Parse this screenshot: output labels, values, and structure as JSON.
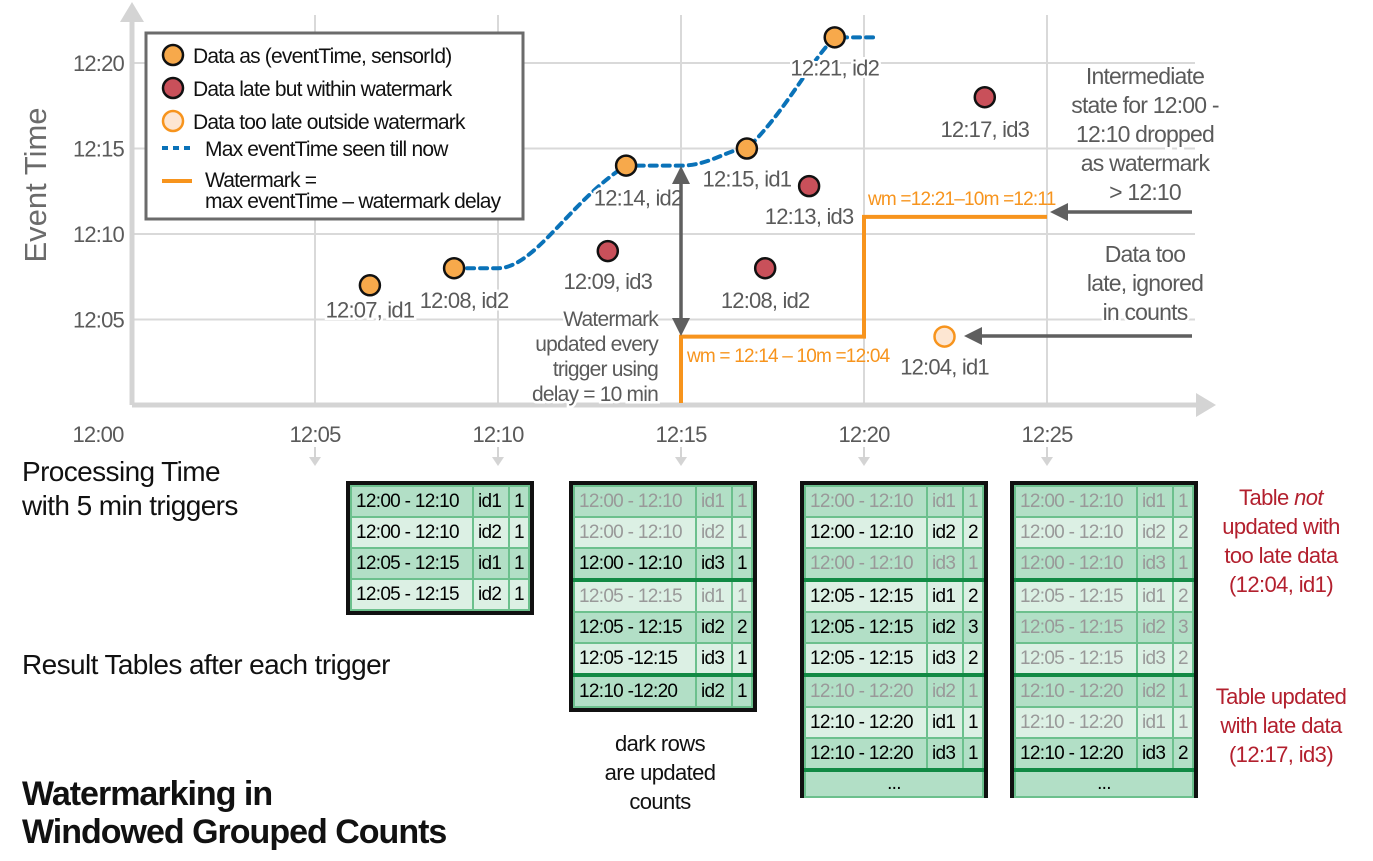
{
  "chart": {
    "y_axis_label": "Event Time",
    "y_ticks": [
      "12:05",
      "12:10",
      "12:15",
      "12:20"
    ],
    "x_ticks": [
      "12:00",
      "12:05",
      "12:10",
      "12:15",
      "12:20",
      "12:25"
    ],
    "legend": [
      {
        "marker": "orange-circle",
        "label": "Data as (eventTime, sensorId)"
      },
      {
        "marker": "red-circle",
        "label": "Data late but within watermark"
      },
      {
        "marker": "pale-circle",
        "label": "Data too late outside watermark"
      },
      {
        "marker": "blue-dashed-line",
        "label": "Max eventTime seen till now"
      },
      {
        "marker": "orange-line",
        "label_line1": "Watermark =",
        "label_line2": "max eventTime – watermark delay"
      }
    ],
    "points": [
      {
        "kind": "on-time",
        "label": "12:07, id1",
        "proc_min": 6.5,
        "event_min": 7
      },
      {
        "kind": "on-time",
        "label": "12:08, id2",
        "proc_min": 8.8,
        "event_min": 8
      },
      {
        "kind": "late",
        "label": "12:09, id3",
        "proc_min": 13,
        "event_min": 9
      },
      {
        "kind": "on-time",
        "label": "12:14, id2",
        "proc_min": 13.5,
        "event_min": 14
      },
      {
        "kind": "on-time",
        "label": "12:15, id1",
        "proc_min": 16.8,
        "event_min": 15
      },
      {
        "kind": "late",
        "label": "12:08, id2",
        "proc_min": 17.3,
        "event_min": 8
      },
      {
        "kind": "late",
        "label": "12:13, id3",
        "proc_min": 18.5,
        "event_min": 12.8
      },
      {
        "kind": "on-time",
        "label": "12:21, id2",
        "proc_min": 19.2,
        "event_min": 21.5
      },
      {
        "kind": "too-late",
        "label": "12:04, id1",
        "proc_min": 22.2,
        "event_min": 4
      },
      {
        "kind": "late",
        "label": "12:17, id3",
        "proc_min": 23.3,
        "event_min": 18
      }
    ],
    "watermark_labels": {
      "first": "wm = 12:14 – 10m =12:04",
      "second": "wm =12:21–10m =12:11"
    },
    "annotations": {
      "watermark_update": [
        "Watermark",
        "updated every",
        "trigger using",
        "delay = 10 min"
      ],
      "intermediate_state": [
        "Intermediate",
        "state for 12:00 -",
        "12:10 dropped",
        "as watermark",
        "> 12:10"
      ],
      "too_late": [
        "Data too",
        "late, ignored",
        "in counts"
      ]
    },
    "colors": {
      "on_time": "#f7a94b",
      "late": "#c9505a",
      "too_late_fill": "#fde6d2",
      "too_late_stroke": "#f7941d",
      "max_event_line": "#0a72b8",
      "watermark": "#f7941d",
      "grid": "#d9d9d9",
      "arrow": "#5f5f5f"
    }
  },
  "labels": {
    "processing_time_line1": "Processing Time",
    "processing_time_line2": "with 5 min triggers",
    "result_tables": "Result Tables after each trigger",
    "title_line1": "Watermarking in",
    "title_line2": "Windowed Grouped Counts",
    "dark_rows_line1": "dark rows",
    "dark_rows_line2": "are updated",
    "dark_rows_line3": "counts",
    "note_not_updated_pre": "Table ",
    "note_not_updated_em": "not",
    "note_not_updated_line2": "updated with",
    "note_not_updated_line3": "too late data",
    "note_not_updated_line4": "(12:04, id1)",
    "note_updated_line1": "Table updated",
    "note_updated_line2": "with late data",
    "note_updated_line3": "(12:17, id3)",
    "ellipsis": "..."
  },
  "tables": [
    {
      "trigger": "12:10",
      "rows": [
        {
          "window": "12:00 - 12:10",
          "sensor": "id1",
          "count": "1",
          "updated": true
        },
        {
          "window": "12:00 - 12:10",
          "sensor": "id2",
          "count": "1",
          "updated": true
        },
        {
          "window": "12:05 - 12:15",
          "sensor": "id1",
          "count": "1",
          "updated": true
        },
        {
          "window": "12:05 - 12:15",
          "sensor": "id2",
          "count": "1",
          "updated": true
        }
      ]
    },
    {
      "trigger": "12:15",
      "rows": [
        {
          "window": "12:00 - 12:10",
          "sensor": "id1",
          "count": "1",
          "updated": false
        },
        {
          "window": "12:00 - 12:10",
          "sensor": "id2",
          "count": "1",
          "updated": false
        },
        {
          "window": "12:00 - 12:10",
          "sensor": "id3",
          "count": "1",
          "updated": true
        },
        {
          "window": "12:05 - 12:15",
          "sensor": "id1",
          "count": "1",
          "updated": false
        },
        {
          "window": "12:05 - 12:15",
          "sensor": "id2",
          "count": "2",
          "updated": true
        },
        {
          "window": "12:05 -12:15",
          "sensor": "id3",
          "count": "1",
          "updated": true
        },
        {
          "window": "12:10 -12:20",
          "sensor": "id2",
          "count": "1",
          "updated": true
        }
      ]
    },
    {
      "trigger": "12:20",
      "rows": [
        {
          "window": "12:00 - 12:10",
          "sensor": "id1",
          "count": "1",
          "updated": false
        },
        {
          "window": "12:00 - 12:10",
          "sensor": "id2",
          "count": "2",
          "updated": true
        },
        {
          "window": "12:00 - 12:10",
          "sensor": "id3",
          "count": "1",
          "updated": false
        },
        {
          "window": "12:05 - 12:15",
          "sensor": "id1",
          "count": "2",
          "updated": true
        },
        {
          "window": "12:05 - 12:15",
          "sensor": "id2",
          "count": "3",
          "updated": true
        },
        {
          "window": "12:05 - 12:15",
          "sensor": "id3",
          "count": "2",
          "updated": true
        },
        {
          "window": "12:10 - 12:20",
          "sensor": "id2",
          "count": "1",
          "updated": false
        },
        {
          "window": "12:10 - 12:20",
          "sensor": "id1",
          "count": "1",
          "updated": true
        },
        {
          "window": "12:10 - 12:20",
          "sensor": "id3",
          "count": "1",
          "updated": true
        }
      ]
    },
    {
      "trigger": "12:25",
      "rows": [
        {
          "window": "12:00 - 12:10",
          "sensor": "id1",
          "count": "1",
          "updated": false
        },
        {
          "window": "12:00 - 12:10",
          "sensor": "id2",
          "count": "2",
          "updated": false
        },
        {
          "window": "12:00 - 12:10",
          "sensor": "id3",
          "count": "1",
          "updated": false
        },
        {
          "window": "12:05 - 12:15",
          "sensor": "id1",
          "count": "2",
          "updated": false
        },
        {
          "window": "12:05 - 12:15",
          "sensor": "id2",
          "count": "3",
          "updated": false
        },
        {
          "window": "12:05 - 12:15",
          "sensor": "id3",
          "count": "2",
          "updated": false
        },
        {
          "window": "12:10 - 12:20",
          "sensor": "id2",
          "count": "1",
          "updated": false
        },
        {
          "window": "12:10 - 12:20",
          "sensor": "id1",
          "count": "1",
          "updated": false
        },
        {
          "window": "12:10 - 12:20",
          "sensor": "id3",
          "count": "2",
          "updated": true
        }
      ]
    }
  ]
}
